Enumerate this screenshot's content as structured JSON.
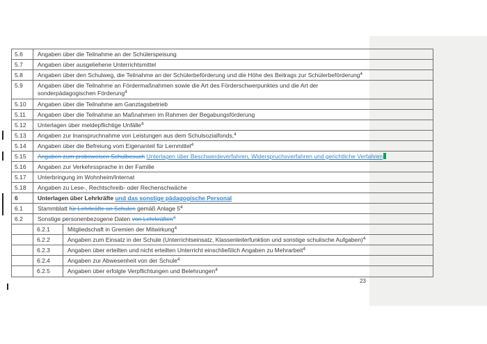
{
  "document": {
    "page_number": "23"
  },
  "colors": {
    "tracked_change_blue": "#3b87c8",
    "highlight_green": "#00a651",
    "side_panel_gray": "#f0f0ee",
    "table_border_gray": "#6e6e6e"
  },
  "table": {
    "rows": [
      {
        "num": "5.6",
        "level": 1,
        "segments": [
          {
            "t": "Angaben über die Teilnahme an der Schülerspeisung"
          }
        ]
      },
      {
        "num": "5.7",
        "level": 1,
        "segments": [
          {
            "t": "Angaben über ausgeliehene Unterrichtsmittel"
          }
        ]
      },
      {
        "num": "5.8",
        "level": 1,
        "segments": [
          {
            "t": "Angaben über den Schulweg, die Teilnahme an der Schülerbeförderung und die Höhe des Beitrags zur Schülerbeförderung"
          },
          {
            "t": "4",
            "s": "sup"
          }
        ]
      },
      {
        "num": "5.9",
        "level": 1,
        "two_line": true,
        "segments": [
          {
            "t": "Angaben über die Teilnahme an Fördermaßnahmen sowie die Art des Förderschwerpunktes und die Art der"
          },
          {
            "s": "br"
          },
          {
            "t": "sonderpädagogischen Förderung"
          },
          {
            "t": "4",
            "s": "sup"
          }
        ]
      },
      {
        "num": "5.10",
        "level": 1,
        "segments": [
          {
            "t": "Angaben über die Teilnahme am Ganztagsbetrieb"
          }
        ]
      },
      {
        "num": "5.11",
        "level": 1,
        "segments": [
          {
            "t": "Angaben über die Teilnahme an Maßnahmen im Rahmen der Begabungsförderung"
          }
        ]
      },
      {
        "num": "5.12",
        "level": 1,
        "segments": [
          {
            "t": "Unterlagen über meldepflichtige Unfälle"
          },
          {
            "t": "4",
            "s": "sup"
          }
        ]
      },
      {
        "num": "5.13",
        "level": 1,
        "segments": [
          {
            "t": "Angaben zur Inanspruchnahme von Leistungen aus dem Schulsozialfonds,"
          },
          {
            "t": "4",
            "s": "sup"
          }
        ]
      },
      {
        "num": "5.14",
        "level": 1,
        "segments": [
          {
            "t": "Angaben über die Befreiung vom Eigenanteil für Lernmittel"
          },
          {
            "t": "4",
            "s": "sup"
          }
        ]
      },
      {
        "num": "5.15",
        "level": 1,
        "segments": [
          {
            "t": "Angaben zum probeweisen Schulbesuch",
            "s": "del"
          },
          {
            "t": " "
          },
          {
            "t": "Unterlagen über Beschwerdeverfahren, Widerspruchsverfahren und gerichtliche Verfahren",
            "s": "ins"
          },
          {
            "s": "mark"
          }
        ]
      },
      {
        "num": "5.16",
        "level": 1,
        "segments": [
          {
            "t": "Angaben zur Verkehrssprache in der Familie"
          }
        ]
      },
      {
        "num": "5.17",
        "level": 1,
        "segments": [
          {
            "t": "Unterbringung im Wohnheim/Internat"
          }
        ]
      },
      {
        "num": "5.18",
        "level": 1,
        "segments": [
          {
            "t": "Angaben zu Lese-, Rechtschreib- oder Rechenschwäche"
          }
        ]
      },
      {
        "num": "6",
        "level": 1,
        "bold": true,
        "segments": [
          {
            "t": "Unterlagen über Lehrkräfte ",
            "s": "bold"
          },
          {
            "t": "und das sonstige pädagogische Personal",
            "s": "ins-bold"
          }
        ]
      },
      {
        "num": "6.1",
        "level": 1,
        "segments": [
          {
            "t": "Stammblatt "
          },
          {
            "t": "für Lehrkräfte an Schulen",
            "s": "del"
          },
          {
            "t": " gemäß Anlage 5"
          },
          {
            "t": "4",
            "s": "sup"
          }
        ]
      },
      {
        "num": "6.2",
        "level": 1,
        "segments": [
          {
            "t": "Sonstige personenbezogene Daten "
          },
          {
            "t": "von Lehrkräften",
            "s": "del"
          },
          {
            "t": "4",
            "s": "del-sup"
          }
        ]
      },
      {
        "num": "6.2.1",
        "level": 2,
        "segments": [
          {
            "t": "Mitgliedschaft in Gremien der Mitwirkung"
          },
          {
            "t": "4",
            "s": "sup"
          }
        ]
      },
      {
        "num": "6.2.2",
        "level": 2,
        "segments": [
          {
            "t": "Angaben zum Einsatz in der Schule (Unterrichtseinsatz, Klassenleiterfunktion und sonstige schulische Aufgaben)"
          },
          {
            "t": "4",
            "s": "sup"
          }
        ]
      },
      {
        "num": "6.2.3",
        "level": 2,
        "segments": [
          {
            "t": "Angaben über erteilten und nicht erteilten Unterricht einschließlich Angaben zu Mehrarbeit"
          },
          {
            "t": "4",
            "s": "sup"
          }
        ]
      },
      {
        "num": "6.2.4",
        "level": 2,
        "segments": [
          {
            "t": "Angaben zur Abwesenheit von der Schule"
          },
          {
            "t": "4",
            "s": "sup"
          }
        ]
      },
      {
        "num": "6.2.5",
        "level": 2,
        "segments": [
          {
            "t": "Angaben über erfolgte Verpflichtungen und Belehrungen"
          },
          {
            "t": "4",
            "s": "sup"
          }
        ]
      }
    ]
  }
}
